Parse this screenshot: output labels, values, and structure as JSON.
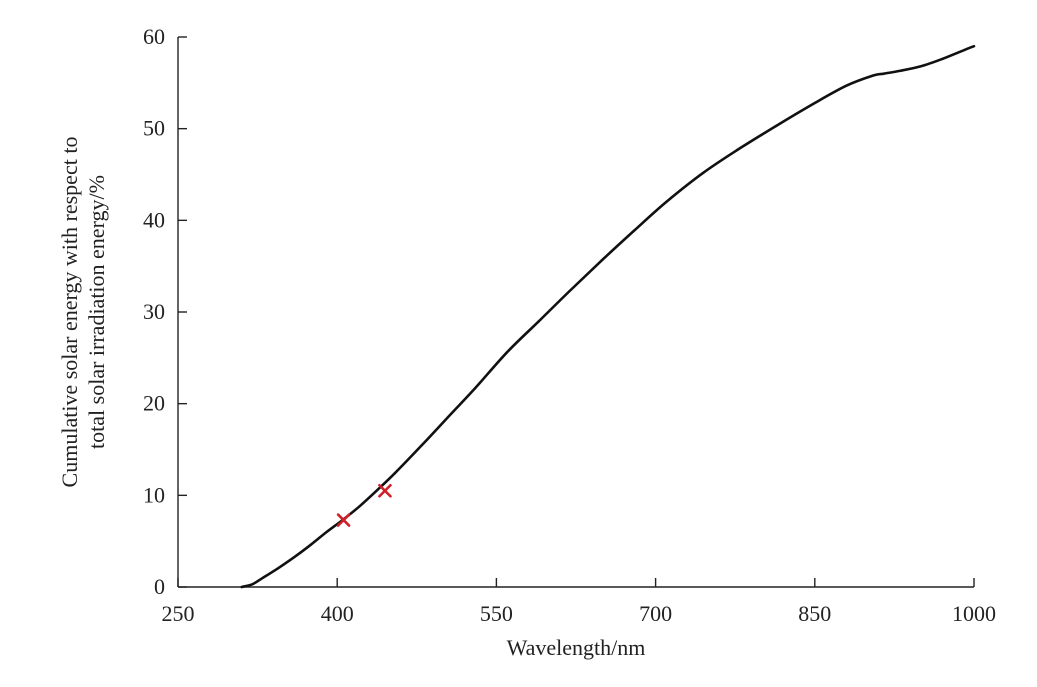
{
  "chart_data": {
    "type": "line",
    "xlabel": "Wavelength/nm",
    "ylabel_lines": [
      "Cumulative solar energy with respect to",
      "total solar irradiation energy/%"
    ],
    "xlim": [
      250,
      1000
    ],
    "ylim": [
      0,
      60
    ],
    "xticks": [
      250,
      400,
      550,
      700,
      850,
      1000
    ],
    "yticks": [
      0,
      10,
      20,
      30,
      40,
      50,
      60
    ],
    "grid": false,
    "series": [
      {
        "color": "#111111",
        "x": [
          310,
          320,
          330,
          345,
          360,
          375,
          390,
          405,
          420,
          437,
          455,
          480,
          505,
          530,
          560,
          590,
          620,
          650,
          680,
          710,
          745,
          780,
          815,
          850,
          880,
          905,
          915,
          930,
          950,
          970,
          985,
          1000
        ],
        "y": [
          0,
          0.3,
          1.0,
          2.1,
          3.3,
          4.6,
          6.0,
          7.3,
          8.7,
          10.5,
          12.5,
          15.5,
          18.6,
          21.7,
          25.6,
          29.0,
          32.4,
          35.7,
          38.9,
          42.0,
          45.2,
          47.9,
          50.4,
          52.8,
          54.7,
          55.8,
          56.0,
          56.3,
          56.8,
          57.6,
          58.3,
          59.0
        ]
      }
    ],
    "markers": [
      {
        "x": 406,
        "y": 7.3,
        "symbol": "x",
        "color": "#d0202a"
      },
      {
        "x": 445,
        "y": 10.5,
        "symbol": "x",
        "color": "#d0202a"
      }
    ]
  }
}
